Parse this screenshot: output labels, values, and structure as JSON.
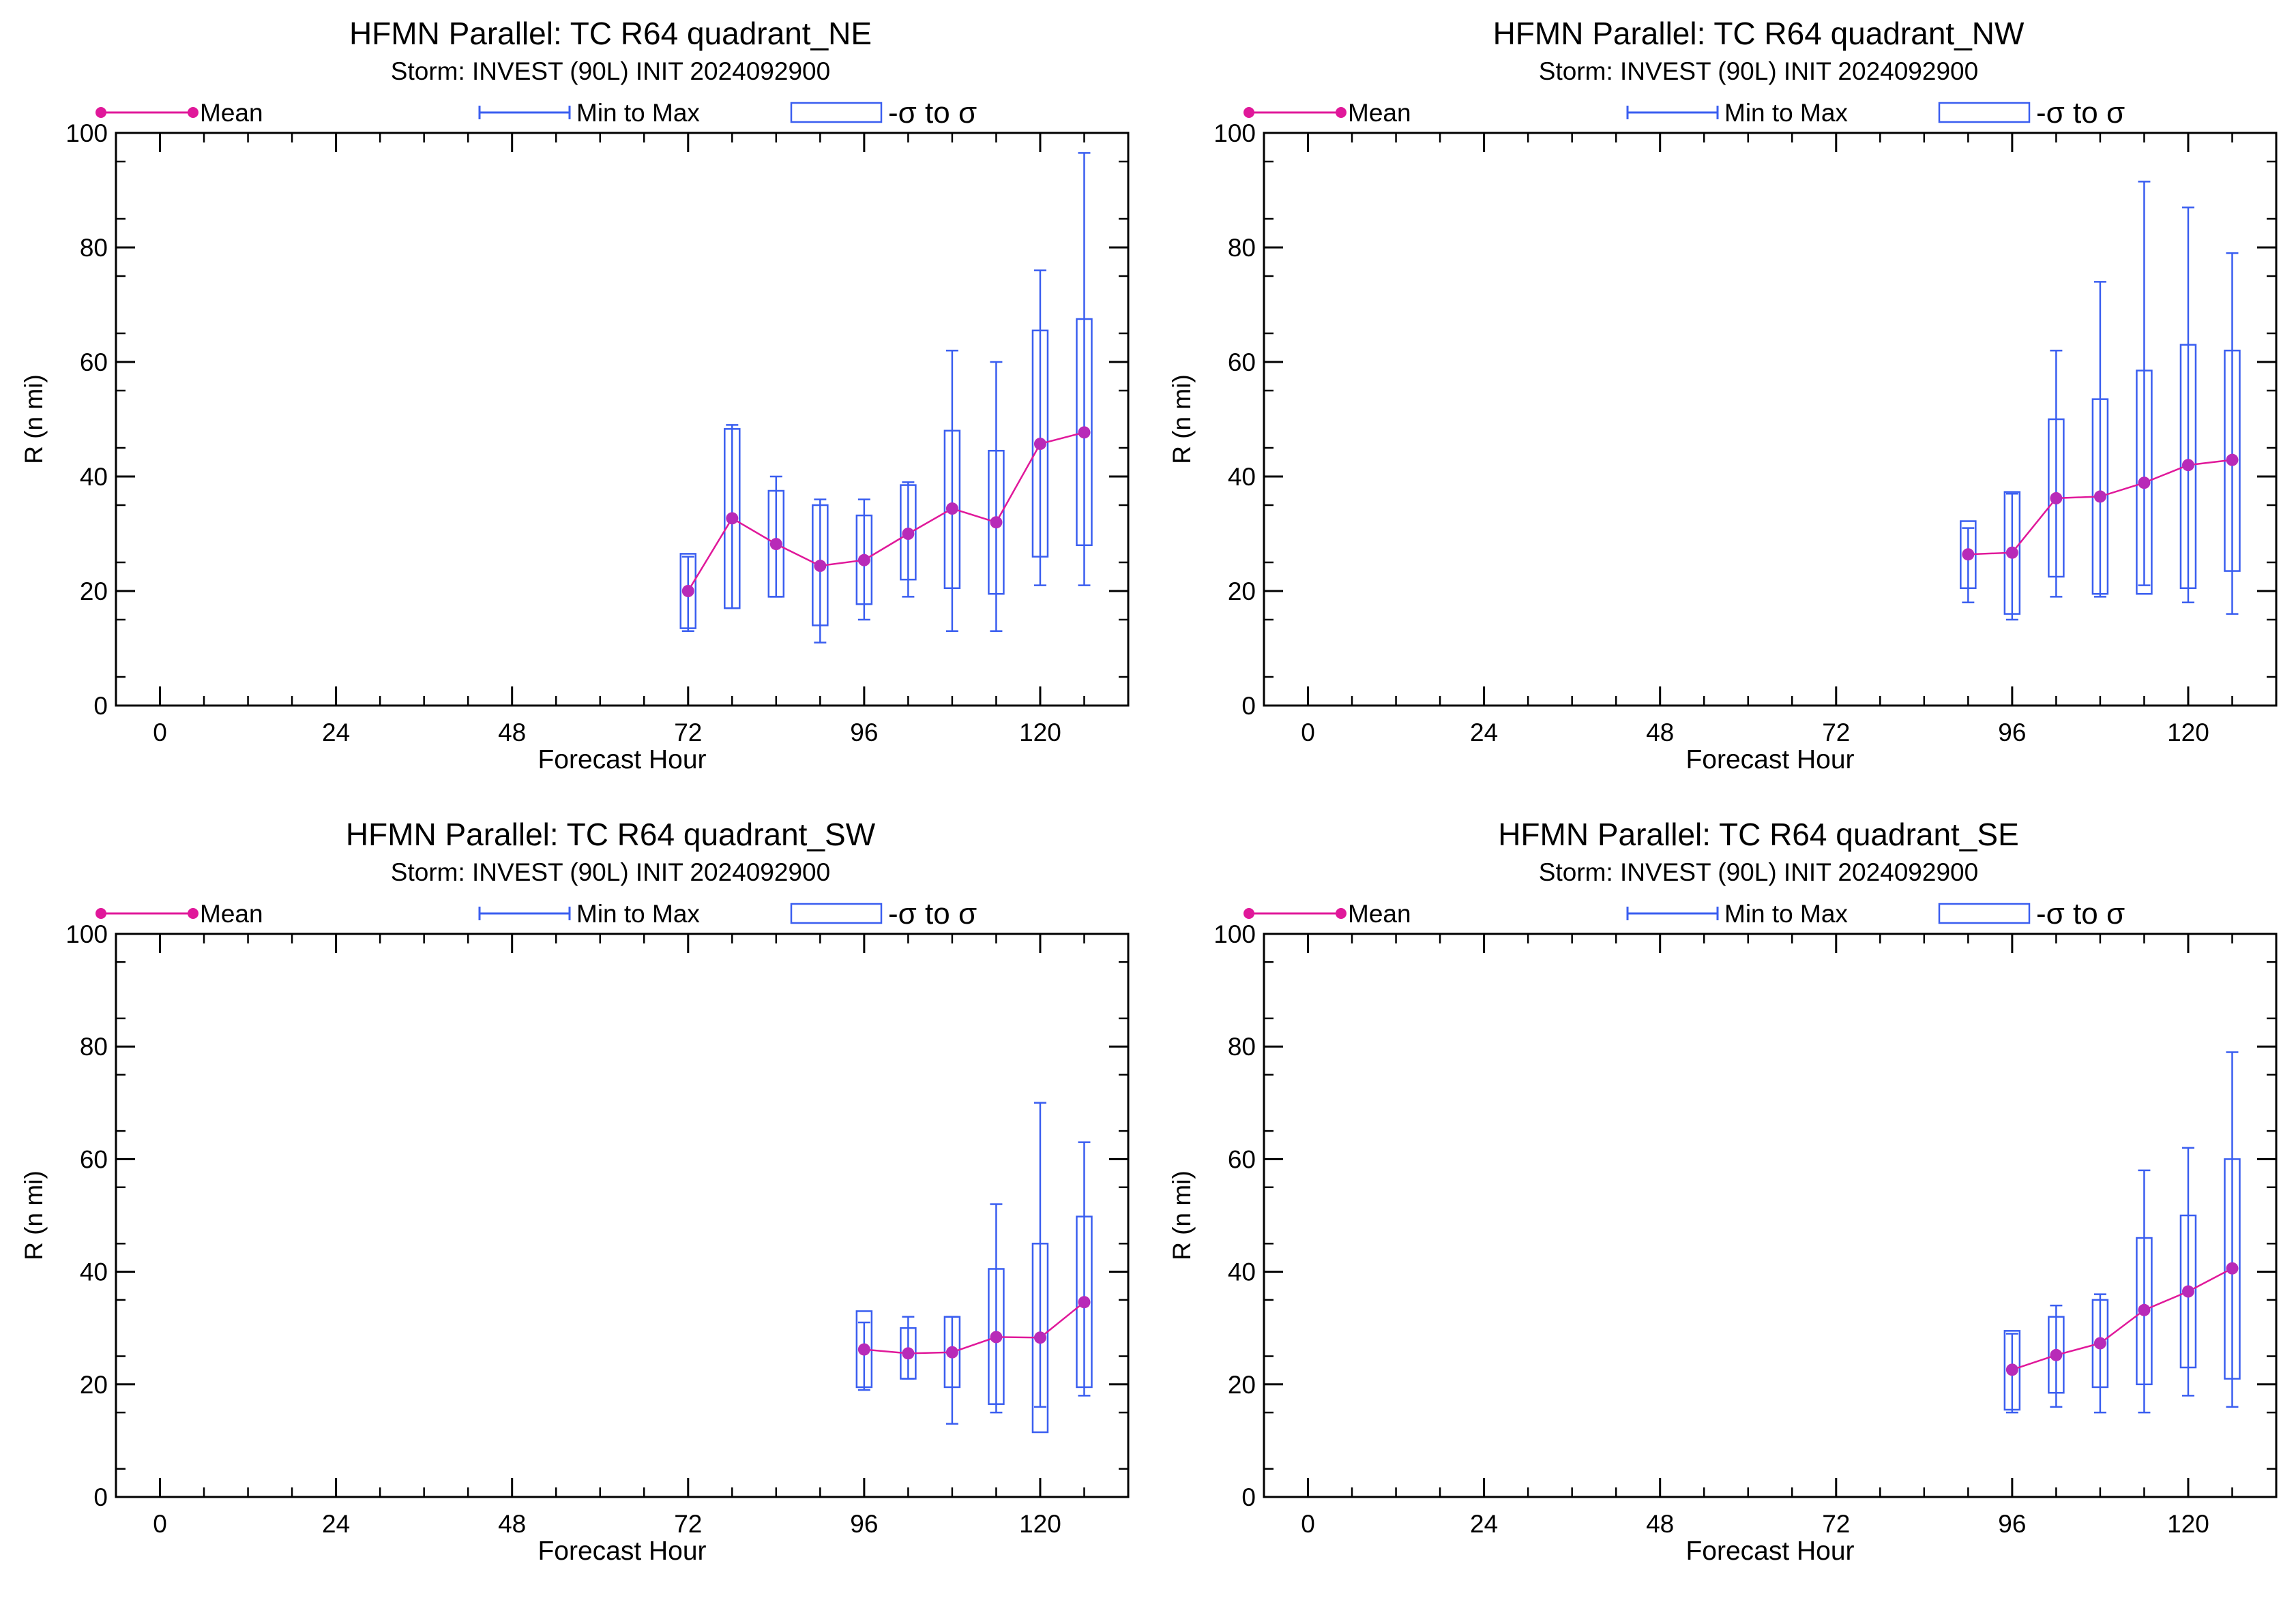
{
  "legend": {
    "mean": "Mean",
    "minmax": "Min to Max",
    "sigma": "-σ to σ"
  },
  "colors": {
    "mean": "#e0189a",
    "meanMarker": "#b82ab8",
    "box": "#3a5ef0",
    "axis": "#000000"
  },
  "chart_data": [
    {
      "type": "box",
      "title": "HFMN Parallel: TC  R64 quadrant_NE",
      "subtitle": "Storm: INVEST (90L) INIT 2024092900",
      "xlabel": "Forecast Hour",
      "ylabel": "R (n mi)",
      "xlim": [
        -6,
        132
      ],
      "ylim": [
        0,
        100
      ],
      "xticks": [
        "0",
        "24",
        "48",
        "72",
        "96",
        "120"
      ],
      "yticks": [
        "0",
        "20",
        "40",
        "60",
        "80",
        "100"
      ],
      "points": [
        {
          "x": 72,
          "mean": 20.0,
          "min": 13,
          "max": 26,
          "sd_lo": 13.5,
          "sd_hi": 26.5
        },
        {
          "x": 78,
          "mean": 32.7,
          "min": 17,
          "max": 49,
          "sd_lo": 17.0,
          "sd_hi": 48.3
        },
        {
          "x": 84,
          "mean": 28.2,
          "min": 19,
          "max": 40,
          "sd_lo": 19.0,
          "sd_hi": 37.5
        },
        {
          "x": 90,
          "mean": 24.4,
          "min": 11,
          "max": 36,
          "sd_lo": 14.0,
          "sd_hi": 35.0
        },
        {
          "x": 96,
          "mean": 25.4,
          "min": 15,
          "max": 36,
          "sd_lo": 17.7,
          "sd_hi": 33.2
        },
        {
          "x": 102,
          "mean": 30.0,
          "min": 19,
          "max": 39,
          "sd_lo": 22.0,
          "sd_hi": 38.5
        },
        {
          "x": 108,
          "mean": 34.4,
          "min": 13,
          "max": 62,
          "sd_lo": 20.5,
          "sd_hi": 48.0
        },
        {
          "x": 114,
          "mean": 32.0,
          "min": 13,
          "max": 60,
          "sd_lo": 19.5,
          "sd_hi": 44.5
        },
        {
          "x": 120,
          "mean": 45.7,
          "min": 21,
          "max": 76,
          "sd_lo": 26.0,
          "sd_hi": 65.5
        },
        {
          "x": 126,
          "mean": 47.7,
          "min": 21,
          "max": 96.5,
          "sd_lo": 28.0,
          "sd_hi": 67.5
        }
      ]
    },
    {
      "type": "box",
      "title": "HFMN Parallel: TC  R64 quadrant_NW",
      "subtitle": "Storm: INVEST (90L) INIT 2024092900",
      "xlabel": "Forecast Hour",
      "ylabel": "R (n mi)",
      "xlim": [
        -6,
        132
      ],
      "ylim": [
        0,
        100
      ],
      "xticks": [
        "0",
        "24",
        "48",
        "72",
        "96",
        "120"
      ],
      "yticks": [
        "0",
        "20",
        "40",
        "60",
        "80",
        "100"
      ],
      "points": [
        {
          "x": 90,
          "mean": 26.4,
          "min": 18,
          "max": 31,
          "sd_lo": 20.5,
          "sd_hi": 32.2
        },
        {
          "x": 96,
          "mean": 26.7,
          "min": 15,
          "max": 37,
          "sd_lo": 16.0,
          "sd_hi": 37.3
        },
        {
          "x": 102,
          "mean": 36.2,
          "min": 19,
          "max": 62,
          "sd_lo": 22.5,
          "sd_hi": 50.0
        },
        {
          "x": 108,
          "mean": 36.5,
          "min": 19,
          "max": 74,
          "sd_lo": 19.5,
          "sd_hi": 53.5
        },
        {
          "x": 114,
          "mean": 38.9,
          "min": 21,
          "max": 91.5,
          "sd_lo": 19.5,
          "sd_hi": 58.5
        },
        {
          "x": 120,
          "mean": 42.0,
          "min": 18,
          "max": 87,
          "sd_lo": 20.5,
          "sd_hi": 63.0
        },
        {
          "x": 126,
          "mean": 42.9,
          "min": 16,
          "max": 79,
          "sd_lo": 23.5,
          "sd_hi": 62.0
        }
      ]
    },
    {
      "type": "box",
      "title": "HFMN Parallel: TC  R64 quadrant_SW",
      "subtitle": "Storm: INVEST (90L) INIT 2024092900",
      "xlabel": "Forecast Hour",
      "ylabel": "R (n mi)",
      "xlim": [
        -6,
        132
      ],
      "ylim": [
        0,
        100
      ],
      "xticks": [
        "0",
        "24",
        "48",
        "72",
        "96",
        "120"
      ],
      "yticks": [
        "0",
        "20",
        "40",
        "60",
        "80",
        "100"
      ],
      "points": [
        {
          "x": 96,
          "mean": 26.2,
          "min": 19,
          "max": 31,
          "sd_lo": 19.5,
          "sd_hi": 33.0
        },
        {
          "x": 102,
          "mean": 25.5,
          "min": 21,
          "max": 32,
          "sd_lo": 21.0,
          "sd_hi": 30.0
        },
        {
          "x": 108,
          "mean": 25.7,
          "min": 13,
          "max": 32,
          "sd_lo": 19.5,
          "sd_hi": 32.0
        },
        {
          "x": 114,
          "mean": 28.4,
          "min": 15,
          "max": 52,
          "sd_lo": 16.5,
          "sd_hi": 40.5
        },
        {
          "x": 120,
          "mean": 28.3,
          "min": 16,
          "max": 70,
          "sd_lo": 11.5,
          "sd_hi": 45.0
        },
        {
          "x": 126,
          "mean": 34.6,
          "min": 18,
          "max": 63,
          "sd_lo": 19.5,
          "sd_hi": 49.8
        }
      ]
    },
    {
      "type": "box",
      "title": "HFMN Parallel: TC  R64 quadrant_SE",
      "subtitle": "Storm: INVEST (90L) INIT 2024092900",
      "xlabel": "Forecast Hour",
      "ylabel": "R (n mi)",
      "xlim": [
        -6,
        132
      ],
      "ylim": [
        0,
        100
      ],
      "xticks": [
        "0",
        "24",
        "48",
        "72",
        "96",
        "120"
      ],
      "yticks": [
        "0",
        "20",
        "40",
        "60",
        "80",
        "100"
      ],
      "points": [
        {
          "x": 96,
          "mean": 22.6,
          "min": 15,
          "max": 29,
          "sd_lo": 15.5,
          "sd_hi": 29.5
        },
        {
          "x": 102,
          "mean": 25.2,
          "min": 16,
          "max": 34,
          "sd_lo": 18.5,
          "sd_hi": 32.0
        },
        {
          "x": 108,
          "mean": 27.3,
          "min": 15,
          "max": 36,
          "sd_lo": 19.5,
          "sd_hi": 35.0
        },
        {
          "x": 114,
          "mean": 33.2,
          "min": 15,
          "max": 58,
          "sd_lo": 20.0,
          "sd_hi": 46.0
        },
        {
          "x": 120,
          "mean": 36.5,
          "min": 18,
          "max": 62,
          "sd_lo": 23.0,
          "sd_hi": 50.0
        },
        {
          "x": 126,
          "mean": 40.6,
          "min": 16,
          "max": 79,
          "sd_lo": 21.0,
          "sd_hi": 60.0
        }
      ]
    }
  ]
}
